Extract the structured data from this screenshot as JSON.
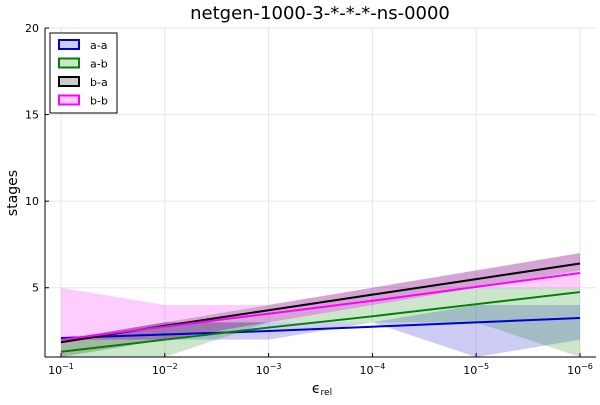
{
  "chart_data": {
    "type": "line",
    "title": "netgen-1000-3-*-*-*-ns-0000",
    "xlabel_main": "ϵ",
    "xlabel_sub": "rel",
    "ylabel": "stages",
    "x_scale": "log-reversed",
    "x": [
      0.1,
      0.01,
      0.001,
      0.0001,
      1e-05,
      1e-06
    ],
    "x_tick_base": "10",
    "x_tick_exponents": [
      "−1",
      "−2",
      "−3",
      "−4",
      "−5",
      "−6"
    ],
    "ylim": [
      1,
      20
    ],
    "y_ticks": [
      5,
      10,
      15,
      20
    ],
    "grid": true,
    "legend_position": "top-left",
    "series": [
      {
        "name": "a-a",
        "color": "#0000cc",
        "values": [
          2.1,
          2.3,
          2.5,
          2.75,
          3.0,
          3.25
        ],
        "lower": [
          2.0,
          2.0,
          2.0,
          3.0,
          1.0,
          2.0
        ],
        "upper": [
          2.0,
          3.0,
          3.0,
          3.0,
          4.0,
          4.0
        ]
      },
      {
        "name": "a-b",
        "color": "#008000",
        "values": [
          1.3,
          2.0,
          2.7,
          3.35,
          4.05,
          4.75
        ],
        "lower": [
          1.0,
          1.0,
          3.0,
          3.0,
          3.0,
          1.0
        ],
        "upper": [
          2.0,
          3.0,
          3.0,
          4.0,
          5.0,
          5.0
        ]
      },
      {
        "name": "b-a",
        "color": "#000000",
        "values": [
          1.85,
          2.8,
          3.7,
          4.6,
          5.5,
          6.4
        ],
        "lower": [
          1.0,
          2.0,
          3.0,
          4.0,
          5.0,
          6.0
        ],
        "upper": [
          2.0,
          3.0,
          4.0,
          5.0,
          6.0,
          7.0
        ]
      },
      {
        "name": "b-b",
        "color": "#ff00ff",
        "values": [
          2.0,
          2.75,
          3.5,
          4.25,
          5.05,
          5.85
        ],
        "lower": [
          2.0,
          2.0,
          3.0,
          4.0,
          5.0,
          5.0
        ],
        "upper": [
          5.0,
          4.0,
          4.0,
          5.0,
          6.0,
          7.0
        ]
      }
    ]
  }
}
